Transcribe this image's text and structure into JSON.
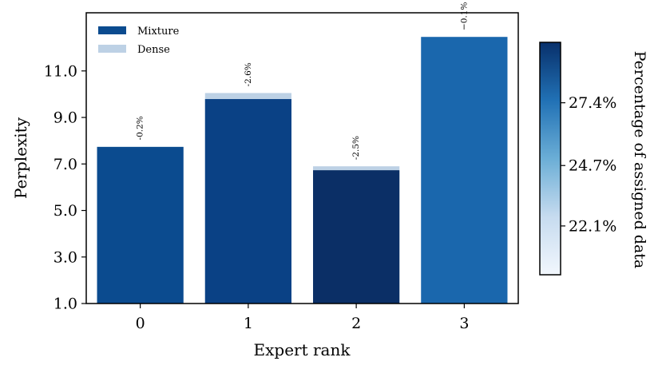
{
  "chart_data": {
    "type": "bar",
    "xlabel": "Expert rank",
    "ylabel": "Perplexity",
    "categories": [
      "0",
      "1",
      "2",
      "3"
    ],
    "yticks": [
      "1.0",
      "3.0",
      "5.0",
      "7.0",
      "9.0",
      "11.0"
    ],
    "ylim": [
      1.0,
      13.5
    ],
    "grid": false,
    "legend_position": "top-left",
    "series": [
      {
        "name": "Dense",
        "values": [
          7.75,
          10.05,
          6.9,
          12.47
        ],
        "color": "#bdd1e5"
      },
      {
        "name": "Mixture",
        "values": [
          7.73,
          9.79,
          6.73,
          12.46
        ]
      }
    ],
    "bar_colors": [
      "#0b4b8f",
      "#0a4185",
      "#0b2f66",
      "#1a67ad"
    ],
    "annotations": [
      "-0.2%",
      "-2.6%",
      "-2.5%",
      "−0.1%"
    ],
    "colorbar": {
      "label": "Percentage of assigned data",
      "ticks": [
        "22.1%",
        "24.7%",
        "27.4%"
      ],
      "tick_values": [
        22.1,
        24.7,
        27.4
      ],
      "range": [
        20.0,
        30.0
      ],
      "colormap": "Blues",
      "color_low": "#f2f7fd",
      "color_high": "#08306b"
    }
  }
}
